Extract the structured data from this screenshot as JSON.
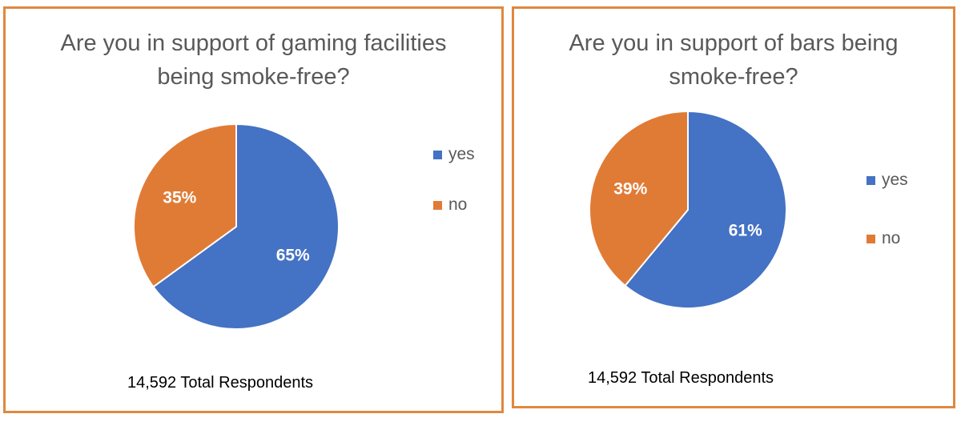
{
  "chart_data": [
    {
      "type": "pie",
      "title": "Are you in support of gaming facilities\nbeing smoke-free?",
      "categories": [
        "yes",
        "no"
      ],
      "values": [
        65,
        35
      ],
      "data_labels": [
        "65%",
        "35%"
      ],
      "colors": [
        "#4472c4",
        "#e07b36"
      ],
      "legend_position": "right",
      "footnote": "14,592 Total Respondents",
      "legend": [
        {
          "label": "yes",
          "color": "#4472c4"
        },
        {
          "label": "no",
          "color": "#e07b36"
        }
      ]
    },
    {
      "type": "pie",
      "title": "Are you in support of bars being\nsmoke-free?",
      "categories": [
        "yes",
        "no"
      ],
      "values": [
        61,
        39
      ],
      "data_labels": [
        "61%",
        "39%"
      ],
      "colors": [
        "#4472c4",
        "#e07b36"
      ],
      "legend_position": "right",
      "footnote": "14,592 Total Respondents",
      "legend": [
        {
          "label": "yes",
          "color": "#4472c4"
        },
        {
          "label": "no",
          "color": "#e07b36"
        }
      ]
    }
  ],
  "border_color": "#e0883f"
}
